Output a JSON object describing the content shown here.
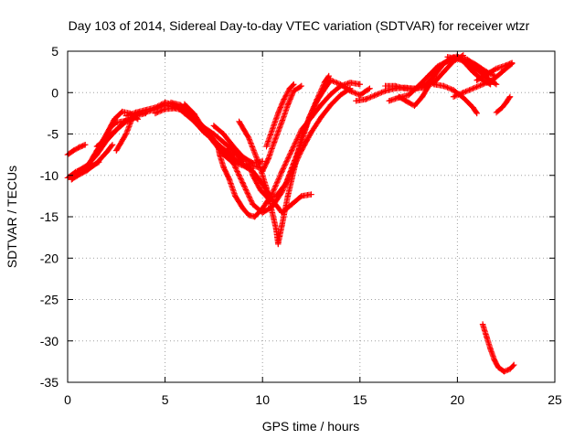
{
  "chart_data": {
    "type": "scatter",
    "title": "Day 103 of 2014, Sidereal Day-to-day VTEC variation (SDTVAR) for receiver wtzr",
    "xlabel": "GPS time / hours",
    "ylabel": "SDTVAR / TECUs",
    "xlim": [
      0,
      25
    ],
    "ylim": [
      -35,
      5
    ],
    "xticks": [
      0,
      5,
      10,
      15,
      20,
      25
    ],
    "yticks": [
      5,
      0,
      -5,
      -10,
      -15,
      -20,
      -25,
      -30,
      -35
    ],
    "grid": true,
    "marker": "+",
    "color": "#ff0000",
    "series": [
      {
        "points": [
          [
            0.0,
            -7.5
          ],
          [
            0.3,
            -7.0
          ],
          [
            0.6,
            -6.6
          ],
          [
            0.9,
            -6.3
          ]
        ]
      },
      {
        "points": [
          [
            0.0,
            -10.3
          ],
          [
            0.4,
            -9.6
          ],
          [
            0.9,
            -9.2
          ],
          [
            1.3,
            -8.8
          ],
          [
            1.6,
            -8.4
          ]
        ]
      },
      {
        "points": [
          [
            0.2,
            -10.5
          ],
          [
            0.6,
            -9.9
          ],
          [
            1.0,
            -9.4
          ],
          [
            1.5,
            -8.5
          ],
          [
            2.0,
            -7.2
          ],
          [
            2.3,
            -6.3
          ]
        ]
      },
      {
        "points": [
          [
            0.5,
            -9.5
          ],
          [
            1.0,
            -8.8
          ],
          [
            1.5,
            -7.5
          ],
          [
            2.0,
            -5.8
          ],
          [
            2.5,
            -4.5
          ],
          [
            3.0,
            -3.3
          ]
        ]
      },
      {
        "points": [
          [
            1.0,
            -9.0
          ],
          [
            1.5,
            -7.0
          ],
          [
            2.0,
            -5.0
          ],
          [
            2.2,
            -4.2
          ],
          [
            2.5,
            -3.6
          ],
          [
            3.0,
            -3.4
          ],
          [
            3.5,
            -3.0
          ]
        ]
      },
      {
        "points": [
          [
            1.5,
            -6.5
          ],
          [
            2.0,
            -5.5
          ],
          [
            2.5,
            -4.5
          ],
          [
            3.0,
            -3.5
          ],
          [
            3.5,
            -2.8
          ],
          [
            4.0,
            -2.5
          ]
        ]
      },
      {
        "points": [
          [
            2.0,
            -5.0
          ],
          [
            2.4,
            -3.2
          ],
          [
            2.8,
            -2.3
          ],
          [
            3.2,
            -2.5
          ],
          [
            3.6,
            -3.2
          ]
        ]
      },
      {
        "points": [
          [
            2.5,
            -7.0
          ],
          [
            3.0,
            -5.0
          ],
          [
            3.3,
            -3.2
          ],
          [
            3.6,
            -2.5
          ],
          [
            4.0,
            -2.4
          ],
          [
            4.5,
            -2.0
          ],
          [
            5.0,
            -1.5
          ],
          [
            5.5,
            -1.8
          ]
        ]
      },
      {
        "points": [
          [
            3.0,
            -2.8
          ],
          [
            3.5,
            -2.4
          ],
          [
            4.0,
            -2.1
          ],
          [
            4.5,
            -1.8
          ],
          [
            5.0,
            -1.2
          ],
          [
            5.5,
            -1.5
          ],
          [
            6.0,
            -2.5
          ],
          [
            6.5,
            -3.5
          ],
          [
            7.0,
            -4.8
          ],
          [
            7.5,
            -5.8
          ],
          [
            8.0,
            -6.8
          ],
          [
            8.5,
            -7.6
          ]
        ]
      },
      {
        "points": [
          [
            4.5,
            -2.5
          ],
          [
            5.0,
            -2.0
          ],
          [
            5.5,
            -1.9
          ],
          [
            6.0,
            -2.2
          ],
          [
            6.5,
            -3.0
          ],
          [
            7.0,
            -4.2
          ],
          [
            7.5,
            -5.0
          ],
          [
            8.0,
            -6.0
          ],
          [
            8.5,
            -7.0
          ],
          [
            9.0,
            -8.3
          ]
        ]
      },
      {
        "points": [
          [
            5.3,
            -1.2
          ],
          [
            5.8,
            -1.5
          ],
          [
            6.3,
            -2.8
          ],
          [
            6.8,
            -4.0
          ],
          [
            7.3,
            -5.2
          ],
          [
            7.8,
            -6.5
          ],
          [
            8.3,
            -7.5
          ],
          [
            8.8,
            -8.4
          ],
          [
            9.3,
            -8.8
          ],
          [
            9.8,
            -9.0
          ]
        ]
      },
      {
        "points": [
          [
            6.0,
            -1.4
          ],
          [
            6.5,
            -2.6
          ],
          [
            7.0,
            -4.5
          ],
          [
            7.5,
            -6.0
          ],
          [
            8.0,
            -7.5
          ],
          [
            8.5,
            -8.5
          ],
          [
            9.0,
            -8.8
          ],
          [
            9.5,
            -9.5
          ],
          [
            10.0,
            -11.0
          ],
          [
            10.5,
            -13.0
          ],
          [
            11.0,
            -14.5
          ],
          [
            11.5,
            -13.5
          ],
          [
            12.0,
            -12.5
          ],
          [
            12.5,
            -12.3
          ]
        ]
      },
      {
        "points": [
          [
            7.5,
            -4.0
          ],
          [
            8.0,
            -5.0
          ],
          [
            8.5,
            -6.5
          ],
          [
            9.0,
            -7.8
          ],
          [
            9.5,
            -8.5
          ],
          [
            10.0,
            -8.3
          ]
        ]
      },
      {
        "points": [
          [
            7.7,
            -6.3
          ],
          [
            7.8,
            -7.5
          ],
          [
            8.0,
            -9.0
          ],
          [
            8.3,
            -10.5
          ],
          [
            8.6,
            -12.5
          ],
          [
            9.0,
            -14.0
          ],
          [
            9.3,
            -14.8
          ],
          [
            9.6,
            -15.0
          ],
          [
            10.0,
            -14.0
          ],
          [
            10.5,
            -12.2
          ],
          [
            11.0,
            -9.5
          ],
          [
            11.5,
            -7.0
          ],
          [
            12.0,
            -4.5
          ],
          [
            12.5,
            -3.0
          ],
          [
            13.0,
            -1.5
          ],
          [
            13.5,
            -0.2
          ],
          [
            14.0,
            0.8
          ],
          [
            14.5,
            1.2
          ],
          [
            15.0,
            1.0
          ]
        ]
      },
      {
        "points": [
          [
            8.2,
            -6.8
          ],
          [
            8.5,
            -8.5
          ],
          [
            9.0,
            -11.0
          ],
          [
            9.5,
            -13.5
          ],
          [
            10.0,
            -14.5
          ],
          [
            10.5,
            -13.8
          ],
          [
            11.0,
            -12.0
          ],
          [
            11.5,
            -9.5
          ],
          [
            12.0,
            -7.0
          ],
          [
            12.5,
            -4.8
          ],
          [
            13.0,
            -3.0
          ],
          [
            13.5,
            -1.5
          ],
          [
            14.0,
            -0.3
          ],
          [
            14.5,
            0.5
          ]
        ]
      },
      {
        "points": [
          [
            8.8,
            -3.5
          ],
          [
            9.3,
            -5.5
          ],
          [
            9.8,
            -8.5
          ],
          [
            10.2,
            -11.5
          ],
          [
            10.5,
            -14.5
          ],
          [
            10.7,
            -16.5
          ],
          [
            10.8,
            -18.3
          ],
          [
            11.0,
            -16.0
          ],
          [
            11.3,
            -12.5
          ],
          [
            11.7,
            -8.5
          ],
          [
            12.0,
            -5.5
          ],
          [
            12.4,
            -3.0
          ],
          [
            12.8,
            -0.8
          ],
          [
            13.2,
            1.3
          ],
          [
            13.4,
            2.0
          ]
        ]
      },
      {
        "points": [
          [
            9.3,
            -8.5
          ],
          [
            9.5,
            -10.0
          ],
          [
            9.9,
            -11.8
          ],
          [
            10.3,
            -12.8
          ],
          [
            10.7,
            -12.5
          ],
          [
            11.2,
            -11.0
          ],
          [
            11.6,
            -8.5
          ],
          [
            12.0,
            -6.0
          ],
          [
            12.4,
            -3.0
          ],
          [
            12.8,
            -1.0
          ],
          [
            13.2,
            0.5
          ],
          [
            13.5,
            1.5
          ],
          [
            14.0,
            1.0
          ],
          [
            14.5,
            0.2
          ],
          [
            15.0,
            -0.3
          ],
          [
            15.5,
            0.5
          ]
        ]
      },
      {
        "points": [
          [
            10.0,
            -9.5
          ],
          [
            10.3,
            -8.0
          ],
          [
            10.6,
            -6.0
          ],
          [
            11.0,
            -3.5
          ],
          [
            11.3,
            -1.5
          ],
          [
            11.6,
            0.2
          ],
          [
            12.0,
            0.8
          ]
        ]
      },
      {
        "points": [
          [
            10.2,
            -6.5
          ],
          [
            10.5,
            -4.5
          ],
          [
            10.8,
            -2.5
          ],
          [
            11.1,
            -0.8
          ],
          [
            11.4,
            0.5
          ],
          [
            11.6,
            1.0
          ]
        ]
      },
      {
        "points": [
          [
            14.8,
            -1.0
          ],
          [
            15.3,
            -0.8
          ],
          [
            15.8,
            -0.3
          ],
          [
            16.3,
            0.2
          ],
          [
            16.8,
            0.5
          ],
          [
            17.3,
            0.6
          ],
          [
            17.8,
            0.5
          ],
          [
            18.3,
            0.6
          ],
          [
            18.8,
            1.2
          ],
          [
            19.3,
            2.5
          ],
          [
            19.8,
            3.8
          ],
          [
            20.3,
            4.5
          ]
        ]
      },
      {
        "points": [
          [
            16.3,
            0.8
          ],
          [
            16.8,
            0.8
          ],
          [
            17.3,
            0.5
          ],
          [
            17.8,
            0.4
          ],
          [
            18.3,
            0.8
          ],
          [
            18.8,
            2.0
          ],
          [
            19.3,
            3.5
          ],
          [
            19.8,
            4.3
          ],
          [
            20.3,
            3.8
          ],
          [
            20.8,
            2.5
          ],
          [
            21.3,
            1.5
          ],
          [
            21.7,
            1.0
          ]
        ]
      },
      {
        "points": [
          [
            16.5,
            -1.0
          ],
          [
            17.0,
            -0.6
          ],
          [
            17.5,
            -0.3
          ],
          [
            18.0,
            0.8
          ],
          [
            18.5,
            2.0
          ],
          [
            19.0,
            3.2
          ],
          [
            19.5,
            3.8
          ],
          [
            20.0,
            4.2
          ],
          [
            20.5,
            4.0
          ],
          [
            21.0,
            3.0
          ],
          [
            21.5,
            2.0
          ]
        ]
      },
      {
        "points": [
          [
            17.0,
            -0.5
          ],
          [
            17.5,
            -1.2
          ],
          [
            17.8,
            -1.6
          ],
          [
            18.2,
            -0.5
          ],
          [
            18.7,
            1.5
          ],
          [
            19.0,
            3.0
          ],
          [
            19.5,
            3.9
          ],
          [
            20.0,
            4.4
          ],
          [
            20.5,
            3.6
          ],
          [
            21.0,
            2.8
          ],
          [
            21.5,
            1.8
          ],
          [
            22.0,
            1.0
          ]
        ]
      },
      {
        "points": [
          [
            18.8,
            1.0
          ],
          [
            19.3,
            0.8
          ],
          [
            19.8,
            0.3
          ],
          [
            20.3,
            -0.6
          ],
          [
            20.8,
            -1.8
          ],
          [
            21.0,
            -2.5
          ]
        ]
      },
      {
        "points": [
          [
            19.5,
            4.3
          ],
          [
            20.0,
            4.1
          ],
          [
            20.5,
            4.0
          ],
          [
            21.0,
            3.3
          ],
          [
            21.5,
            2.5
          ],
          [
            22.0,
            1.9
          ]
        ]
      },
      {
        "points": [
          [
            19.8,
            -0.5
          ],
          [
            20.3,
            0.0
          ],
          [
            20.8,
            0.5
          ],
          [
            21.3,
            1.0
          ],
          [
            21.8,
            1.5
          ],
          [
            22.3,
            2.5
          ],
          [
            22.8,
            3.5
          ]
        ]
      },
      {
        "points": [
          [
            21.0,
            1.5
          ],
          [
            21.5,
            2.2
          ],
          [
            22.0,
            2.9
          ],
          [
            22.5,
            3.3
          ],
          [
            22.8,
            3.6
          ]
        ]
      },
      {
        "points": [
          [
            22.0,
            -2.4
          ],
          [
            22.3,
            -1.8
          ],
          [
            22.5,
            -1.2
          ],
          [
            22.7,
            -0.5
          ]
        ]
      },
      {
        "points": [
          [
            21.3,
            -28.0
          ],
          [
            21.5,
            -29.5
          ],
          [
            21.7,
            -31.0
          ],
          [
            21.9,
            -32.3
          ],
          [
            22.1,
            -33.2
          ],
          [
            22.4,
            -33.7
          ],
          [
            22.7,
            -33.4
          ],
          [
            22.9,
            -32.9
          ]
        ]
      }
    ]
  }
}
